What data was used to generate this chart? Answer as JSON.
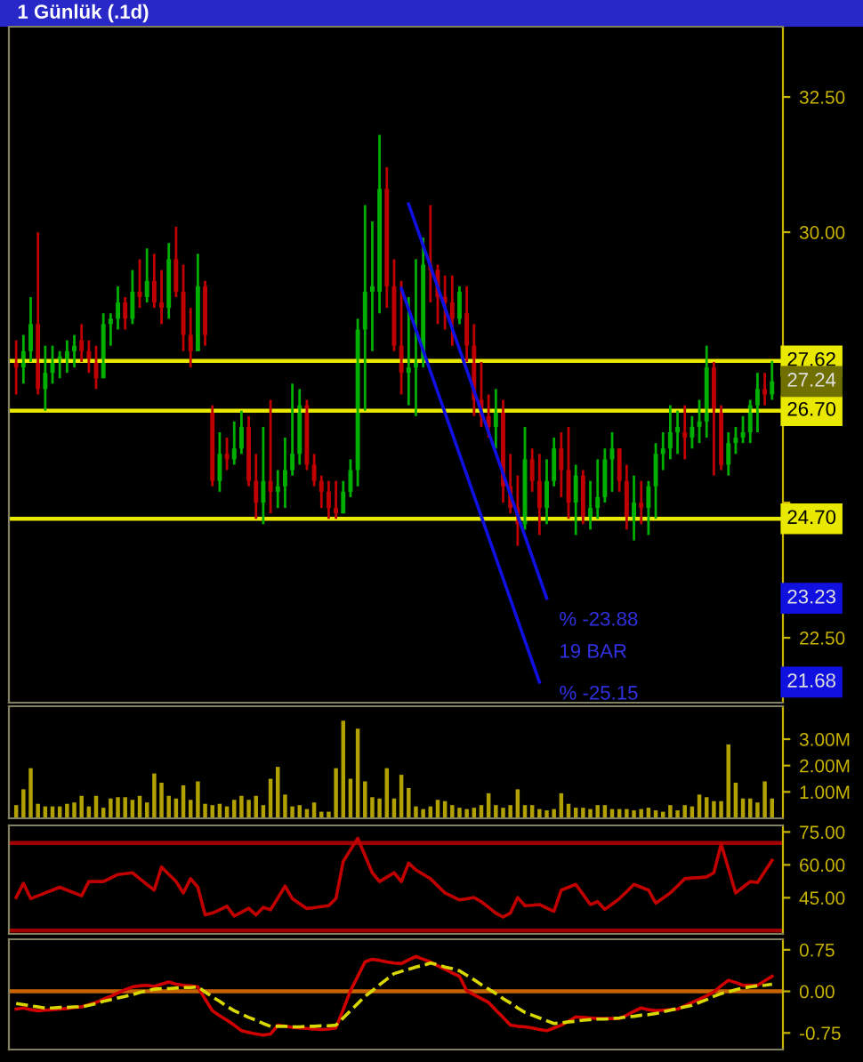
{
  "chart_data": [
    {
      "type": "candlestick",
      "title": "1 Günlük (.1d)",
      "tick_labels": "y",
      "grid": false,
      "legend": false,
      "categories": [
        null,
        null,
        null,
        null,
        null,
        null,
        null,
        null,
        null,
        null,
        null,
        null,
        null,
        null,
        null,
        null,
        null,
        null,
        null,
        null,
        null,
        null,
        null,
        null,
        null,
        null,
        null,
        null,
        null,
        null,
        null,
        null,
        null,
        null,
        null,
        null,
        null,
        null,
        null,
        null,
        null,
        null,
        null,
        null,
        null,
        null,
        null,
        null,
        null,
        null,
        null,
        null,
        null,
        null,
        null,
        null,
        null,
        null,
        null,
        null,
        null,
        null,
        null,
        null,
        null,
        null,
        null,
        null,
        null,
        null,
        null,
        null,
        null,
        null,
        null,
        null,
        null,
        null,
        null,
        null,
        null,
        null,
        null,
        null,
        null,
        null,
        null,
        null,
        null,
        null,
        null,
        null,
        null,
        null,
        null,
        null,
        null,
        null,
        null,
        null,
        null,
        null,
        null,
        null,
        null
      ],
      "ohlc": [
        [
          27.6,
          28.0,
          27.0,
          27.5
        ],
        [
          27.5,
          28.1,
          27.2,
          27.8
        ],
        [
          27.8,
          28.8,
          27.6,
          28.3
        ],
        [
          28.3,
          30.0,
          27.0,
          27.1
        ],
        [
          27.1,
          27.9,
          26.7,
          27.4
        ],
        [
          27.4,
          27.9,
          27.2,
          27.6
        ],
        [
          27.6,
          27.8,
          27.3,
          27.7
        ],
        [
          27.6,
          28.0,
          27.4,
          27.8
        ],
        [
          27.8,
          28.1,
          27.5,
          27.9
        ],
        [
          28.0,
          28.3,
          27.6,
          27.8
        ],
        [
          27.8,
          28.0,
          27.4,
          27.6
        ],
        [
          27.6,
          27.9,
          27.1,
          27.3
        ],
        [
          27.3,
          28.5,
          27.3,
          28.3
        ],
        [
          28.3,
          28.5,
          27.9,
          28.4
        ],
        [
          28.4,
          29.0,
          28.2,
          28.7
        ],
        [
          28.7,
          28.8,
          28.2,
          28.4
        ],
        [
          28.4,
          29.3,
          28.3,
          28.9
        ],
        [
          28.9,
          29.5,
          28.6,
          28.8
        ],
        [
          28.8,
          29.7,
          28.7,
          29.1
        ],
        [
          29.1,
          29.6,
          28.6,
          28.7
        ],
        [
          28.7,
          29.3,
          28.3,
          28.6
        ],
        [
          28.6,
          29.8,
          28.4,
          29.5
        ],
        [
          29.5,
          30.1,
          28.8,
          28.9
        ],
        [
          28.9,
          29.4,
          27.8,
          28.1
        ],
        [
          28.1,
          28.6,
          27.5,
          27.8
        ],
        [
          27.8,
          29.6,
          27.8,
          29.0
        ],
        [
          29.0,
          29.1,
          27.9,
          28.1
        ],
        [
          26.7,
          26.8,
          25.3,
          25.4
        ],
        [
          25.4,
          26.3,
          25.2,
          25.9
        ],
        [
          25.9,
          26.2,
          25.6,
          25.8
        ],
        [
          25.8,
          26.5,
          25.7,
          26.0
        ],
        [
          26.0,
          26.7,
          25.9,
          26.4
        ],
        [
          26.4,
          26.6,
          25.3,
          25.4
        ],
        [
          25.4,
          25.9,
          24.7,
          25.0
        ],
        [
          25.0,
          26.4,
          24.6,
          25.4
        ],
        [
          25.4,
          26.9,
          24.8,
          25.2
        ],
        [
          25.2,
          25.6,
          24.9,
          25.3
        ],
        [
          25.3,
          26.2,
          24.9,
          25.6
        ],
        [
          25.6,
          27.2,
          25.5,
          25.9
        ],
        [
          25.9,
          27.1,
          25.7,
          26.8
        ],
        [
          26.8,
          26.9,
          25.6,
          25.7
        ],
        [
          25.7,
          25.9,
          25.3,
          25.4
        ],
        [
          25.4,
          25.5,
          24.9,
          25.2
        ],
        [
          25.2,
          25.4,
          24.7,
          24.9
        ],
        [
          24.9,
          25.4,
          24.7,
          24.8
        ],
        [
          24.8,
          25.4,
          24.8,
          25.2
        ],
        [
          25.2,
          25.8,
          25.1,
          25.6
        ],
        [
          25.6,
          28.4,
          25.3,
          28.2
        ],
        [
          28.2,
          30.5,
          26.7,
          28.9
        ],
        [
          28.9,
          30.2,
          27.8,
          29.0
        ],
        [
          28.9,
          31.8,
          28.5,
          30.8
        ],
        [
          30.8,
          31.2,
          28.6,
          29.0
        ],
        [
          29.0,
          29.5,
          27.8,
          27.9
        ],
        [
          27.9,
          29.1,
          27.0,
          27.4
        ],
        [
          27.4,
          28.8,
          26.8,
          27.5
        ],
        [
          27.5,
          29.5,
          26.6,
          27.6
        ],
        [
          27.6,
          29.9,
          27.5,
          29.4
        ],
        [
          29.4,
          30.5,
          28.7,
          29.3
        ],
        [
          29.3,
          29.4,
          28.3,
          28.8
        ],
        [
          28.8,
          29.2,
          28.2,
          28.7
        ],
        [
          28.7,
          29.2,
          27.9,
          28.4
        ],
        [
          28.4,
          29.0,
          28.3,
          28.9
        ],
        [
          28.5,
          29.0,
          27.6,
          27.9
        ],
        [
          27.9,
          28.3,
          26.6,
          26.9
        ],
        [
          26.9,
          27.6,
          26.4,
          26.6
        ],
        [
          26.6,
          27.0,
          26.2,
          26.4
        ],
        [
          26.4,
          27.1,
          26.0,
          26.7
        ],
        [
          26.7,
          26.9,
          25.0,
          25.3
        ],
        [
          25.3,
          25.9,
          24.8,
          24.9
        ],
        [
          24.9,
          25.5,
          24.2,
          24.6
        ],
        [
          24.6,
          26.4,
          24.5,
          25.8
        ],
        [
          25.8,
          26.0,
          25.2,
          25.4
        ],
        [
          25.4,
          25.9,
          24.4,
          24.9
        ],
        [
          24.9,
          25.8,
          24.6,
          25.4
        ],
        [
          25.4,
          26.2,
          25.3,
          26.0
        ],
        [
          26.0,
          26.3,
          25.1,
          25.6
        ],
        [
          25.6,
          26.4,
          24.7,
          25.0
        ],
        [
          25.0,
          25.7,
          24.4,
          25.5
        ],
        [
          25.5,
          25.6,
          24.6,
          24.7
        ],
        [
          24.7,
          25.4,
          24.5,
          24.9
        ],
        [
          24.9,
          25.8,
          24.7,
          25.1
        ],
        [
          25.1,
          26.0,
          25.0,
          25.8
        ],
        [
          25.8,
          26.3,
          25.2,
          26.0
        ],
        [
          26.0,
          26.0,
          25.2,
          25.4
        ],
        [
          25.4,
          25.7,
          24.5,
          24.7
        ],
        [
          24.7,
          25.5,
          24.3,
          25.0
        ],
        [
          25.0,
          25.4,
          24.6,
          24.9
        ],
        [
          24.9,
          25.4,
          24.4,
          25.3
        ],
        [
          25.3,
          26.1,
          24.7,
          25.9
        ],
        [
          25.9,
          26.3,
          25.6,
          26.0
        ],
        [
          26.0,
          26.8,
          25.8,
          26.3
        ],
        [
          26.3,
          26.7,
          25.9,
          26.4
        ],
        [
          26.3,
          26.8,
          25.8,
          26.2
        ],
        [
          26.2,
          26.6,
          26.0,
          26.4
        ],
        [
          26.4,
          26.9,
          26.1,
          26.5
        ],
        [
          26.5,
          27.9,
          26.2,
          27.5
        ],
        [
          27.5,
          27.6,
          25.5,
          26.7
        ],
        [
          26.7,
          26.8,
          25.6,
          25.7
        ],
        [
          25.7,
          26.3,
          25.5,
          26.1
        ],
        [
          26.1,
          26.4,
          25.9,
          26.2
        ],
        [
          26.2,
          26.6,
          26.1,
          26.3
        ],
        [
          26.3,
          26.9,
          26.1,
          26.8
        ],
        [
          26.8,
          27.4,
          26.3,
          27.1
        ],
        [
          27.1,
          27.4,
          26.8,
          27.0
        ],
        [
          27.0,
          27.62,
          26.9,
          27.24
        ]
      ],
      "series": [
        {
          "type": "line",
          "color": "#1010e0",
          "values": [
            null,
            null,
            null,
            null,
            null,
            null,
            null,
            null,
            null,
            null,
            null,
            null,
            null,
            null,
            null,
            null,
            null,
            null,
            null,
            null,
            null,
            null,
            null,
            null,
            null,
            null,
            null,
            null,
            null,
            null,
            null,
            null,
            null,
            null,
            null,
            null,
            null,
            null,
            null,
            null,
            null,
            null,
            null,
            null,
            null,
            null,
            null,
            null,
            null,
            null,
            null,
            null,
            null,
            null,
            30.52,
            null,
            null,
            null,
            null,
            null,
            null,
            null,
            null,
            null,
            null,
            null,
            null,
            null,
            null,
            null,
            null,
            null,
            null,
            23.23,
            null,
            null,
            null,
            null,
            null,
            null,
            null,
            null,
            null,
            null,
            null,
            null,
            null,
            null,
            null,
            null,
            null,
            null,
            null,
            null,
            null,
            null,
            null,
            null,
            null,
            null,
            null,
            null,
            null,
            null,
            null
          ],
          "value_labels": [
            null,
            null,
            null,
            null,
            null,
            null,
            null,
            null,
            null,
            null,
            null,
            null,
            null,
            null,
            null,
            null,
            null,
            null,
            null,
            null,
            null,
            null,
            null,
            null,
            null,
            null,
            null,
            null,
            null,
            null,
            null,
            null,
            null,
            null,
            null,
            null,
            null,
            null,
            null,
            null,
            null,
            null,
            null,
            null,
            null,
            null,
            null,
            null,
            null,
            null,
            null,
            null,
            null,
            null,
            null,
            null,
            null,
            null,
            null,
            null,
            null,
            null,
            null,
            null,
            null,
            null,
            null,
            null,
            null,
            null,
            null,
            null,
            null,
            null,
            null,
            null,
            null,
            null,
            null,
            null,
            null,
            null,
            null,
            null,
            null,
            null,
            null,
            null,
            null,
            null,
            null,
            null,
            null,
            null,
            null,
            null,
            null,
            null,
            null,
            null,
            null,
            null,
            null,
            null,
            null
          ]
        },
        {
          "type": "line",
          "color": "#1010e0",
          "values": [
            null,
            null,
            null,
            null,
            null,
            null,
            null,
            null,
            null,
            null,
            null,
            null,
            null,
            null,
            null,
            null,
            null,
            null,
            null,
            null,
            null,
            null,
            null,
            null,
            null,
            null,
            null,
            null,
            null,
            null,
            null,
            null,
            null,
            null,
            null,
            null,
            null,
            null,
            null,
            null,
            null,
            null,
            null,
            null,
            null,
            null,
            null,
            null,
            null,
            null,
            null,
            null,
            null,
            28.96,
            null,
            null,
            null,
            null,
            null,
            null,
            null,
            null,
            null,
            null,
            null,
            null,
            null,
            null,
            null,
            null,
            null,
            null,
            21.68,
            null,
            null,
            null,
            null,
            null,
            null,
            null,
            null,
            null,
            null,
            null,
            null,
            null,
            null,
            null,
            null,
            null,
            null,
            null,
            null,
            null,
            null,
            null,
            null,
            null,
            null,
            null,
            null,
            null,
            null,
            null,
            null
          ],
          "value_labels": [
            null,
            null,
            null,
            null,
            null,
            null,
            null,
            null,
            null,
            null,
            null,
            null,
            null,
            null,
            null,
            null,
            null,
            null,
            null,
            null,
            null,
            null,
            null,
            null,
            null,
            null,
            null,
            null,
            null,
            null,
            null,
            null,
            null,
            null,
            null,
            null,
            null,
            null,
            null,
            null,
            null,
            null,
            null,
            null,
            null,
            null,
            null,
            null,
            null,
            null,
            null,
            null,
            null,
            null,
            null,
            null,
            null,
            null,
            null,
            null,
            null,
            null,
            null,
            null,
            null,
            null,
            null,
            null,
            null,
            null,
            null,
            null,
            null,
            null,
            null,
            null,
            null,
            null,
            null,
            null,
            null,
            null,
            null,
            null,
            null,
            null,
            null,
            null,
            null,
            null,
            null,
            null,
            null,
            null,
            null,
            null,
            null,
            null,
            null,
            null,
            null,
            null,
            null,
            null,
            null
          ]
        }
      ],
      "ylim": [
        21.3,
        33.8
      ],
      "yticks": [
        {
          "value": 22.5,
          "label": "22.50"
        },
        {
          "value": 25,
          "label": null
        },
        {
          "value": 30,
          "label": "30.00"
        },
        {
          "value": 32.5,
          "label": "32.50"
        }
      ],
      "ref_lines": [
        {
          "axis": "y",
          "value": 27.62,
          "label": "27.62",
          "color": "#e8e800"
        },
        {
          "axis": "y",
          "value": 26.7,
          "label": "26.70",
          "color": "#e8e800"
        },
        {
          "axis": "y",
          "value": 24.7,
          "label": "24.70",
          "color": "#e8e800"
        }
      ],
      "annotations": [
        {
          "text": "27.24",
          "y": 27.24
        },
        {
          "text": "23.23",
          "y": 23.23
        },
        {
          "text": "21.68",
          "y": 21.68
        },
        "% -23.88",
        "19 BAR",
        "% -25.15"
      ]
    },
    {
      "type": "bar",
      "tick_labels": "y",
      "grid": false,
      "legend": false,
      "color": "#b0a000",
      "categories": [
        null,
        null,
        null,
        null,
        null,
        null,
        null,
        null,
        null,
        null,
        null,
        null,
        null,
        null,
        null,
        null,
        null,
        null,
        null,
        null,
        null,
        null,
        null,
        null,
        null,
        null,
        null,
        null,
        null,
        null,
        null,
        null,
        null,
        null,
        null,
        null,
        null,
        null,
        null,
        null,
        null,
        null,
        null,
        null,
        null,
        null,
        null,
        null,
        null,
        null,
        null,
        null,
        null,
        null,
        null,
        null,
        null,
        null,
        null,
        null,
        null,
        null,
        null,
        null,
        null,
        null,
        null,
        null,
        null,
        null,
        null,
        null,
        null,
        null,
        null,
        null,
        null,
        null,
        null,
        null,
        null,
        null,
        null,
        null,
        null,
        null,
        null,
        null,
        null,
        null,
        null,
        null,
        null,
        null,
        null,
        null,
        null,
        null,
        null,
        null,
        null,
        null,
        null,
        null,
        null
      ],
      "values": [
        0.5,
        1.1,
        1.9,
        0.55,
        0.45,
        0.45,
        0.45,
        0.55,
        0.6,
        0.85,
        0.45,
        0.85,
        0.4,
        0.75,
        0.8,
        0.8,
        0.7,
        0.85,
        0.6,
        1.7,
        1.35,
        0.85,
        0.75,
        1.25,
        0.7,
        1.4,
        0.55,
        0.5,
        0.55,
        0.45,
        0.7,
        0.85,
        0.7,
        0.85,
        0.5,
        1.5,
        1.95,
        0.9,
        0.45,
        0.5,
        0.35,
        0.6,
        0.25,
        0.25,
        1.9,
        3.7,
        1.5,
        3.4,
        1.4,
        0.8,
        0.75,
        1.9,
        0.75,
        1.65,
        1.15,
        0.45,
        0.35,
        0.45,
        0.7,
        0.65,
        0.5,
        0.4,
        0.35,
        0.4,
        0.5,
        0.95,
        0.5,
        0.4,
        0.5,
        1.1,
        0.5,
        0.5,
        0.35,
        0.3,
        0.35,
        0.95,
        0.55,
        0.4,
        0.4,
        0.35,
        0.5,
        0.5,
        0.35,
        0.35,
        0.35,
        0.3,
        0.35,
        0.4,
        0.3,
        0.25,
        0.5,
        0.3,
        0.5,
        0.45,
        0.9,
        0.8,
        0.65,
        0.65,
        2.8,
        1.35,
        0.75,
        0.75,
        0.6,
        1.4,
        0.75
      ],
      "ylim": [
        0,
        4.25
      ],
      "yticks": [
        {
          "value": 1,
          "label": "1.00M"
        },
        {
          "value": 2,
          "label": "2.00M"
        },
        {
          "value": 3,
          "label": "3.00M"
        }
      ]
    },
    {
      "type": "line",
      "tick_labels": "y",
      "grid": false,
      "legend": false,
      "categories": [
        null,
        null,
        null,
        null,
        null,
        null,
        null,
        null,
        null,
        null,
        null,
        null,
        null,
        null,
        null,
        null,
        null,
        null,
        null,
        null,
        null,
        null,
        null,
        null,
        null,
        null,
        null,
        null,
        null,
        null,
        null,
        null,
        null,
        null,
        null,
        null,
        null,
        null,
        null,
        null,
        null,
        null,
        null,
        null,
        null,
        null,
        null,
        null,
        null,
        null,
        null,
        null,
        null,
        null,
        null,
        null,
        null,
        null,
        null,
        null,
        null,
        null,
        null,
        null,
        null,
        null,
        null,
        null,
        null,
        null,
        null,
        null,
        null,
        null,
        null,
        null,
        null,
        null,
        null,
        null,
        null,
        null,
        null,
        null,
        null,
        null,
        null,
        null,
        null,
        null,
        null,
        null,
        null,
        null,
        null,
        null,
        null,
        null,
        null,
        null,
        null,
        null,
        null,
        null,
        null
      ],
      "series": [
        {
          "color": "#c00000",
          "line_style": "solid",
          "values": [
            45.1,
            51.6,
            44.6,
            45.9,
            47.2,
            48.5,
            49.8,
            48.5,
            47.2,
            45.9,
            52.4,
            52.4,
            52.4,
            54.0,
            55.6,
            56.0,
            56.4,
            53.7,
            51.1,
            48.5,
            59.0,
            55.7,
            52.4,
            47.2,
            53.7,
            49.8,
            37.2,
            38.0,
            39.5,
            41.1,
            36.7,
            38.4,
            40.2,
            37.2,
            40.6,
            39.5,
            44.9,
            50.3,
            44.6,
            42.3,
            40.1,
            40.5,
            41.0,
            41.4,
            44.6,
            61.6,
            66.9,
            72.1,
            64.2,
            56.4,
            52.4,
            54.4,
            56.4,
            52.4,
            60.8,
            57.7,
            55.7,
            53.7,
            50.4,
            47.2,
            45.6,
            44.0,
            44.5,
            45.1,
            43.2,
            40.6,
            38.0,
            36.2,
            38.0,
            45.1,
            41.4,
            41.6,
            41.9,
            40.3,
            38.8,
            48.5,
            49.8,
            51.1,
            46.5,
            41.9,
            43.2,
            39.7,
            42.1,
            44.6,
            47.8,
            51.1,
            49.8,
            48.5,
            42.5,
            44.8,
            47.2,
            50.4,
            53.7,
            54.0,
            54.2,
            54.5,
            56.4,
            69.5,
            58.3,
            47.2,
            49.8,
            52.4,
            51.9,
            57.0,
            62.1
          ]
        }
      ],
      "ylim": [
        28.5,
        78
      ],
      "yticks": [
        {
          "value": 45,
          "label": "45.00"
        },
        {
          "value": 60,
          "label": "60.00"
        },
        {
          "value": 75,
          "label": "75.00"
        }
      ],
      "ref_lines": [
        {
          "axis": "y",
          "value": 70,
          "color": "#a00000"
        },
        {
          "axis": "y",
          "value": 30,
          "color": "#a00000"
        }
      ]
    },
    {
      "type": "line",
      "tick_labels": "y",
      "grid": false,
      "legend": false,
      "categories": [
        null,
        null,
        null,
        null,
        null,
        null,
        null,
        null,
        null,
        null,
        null,
        null,
        null,
        null,
        null,
        null,
        null,
        null,
        null,
        null,
        null,
        null,
        null,
        null,
        null,
        null,
        null,
        null,
        null,
        null,
        null,
        null,
        null,
        null,
        null,
        null,
        null,
        null,
        null,
        null,
        null,
        null,
        null,
        null,
        null,
        null,
        null,
        null,
        null,
        null,
        null,
        null,
        null,
        null,
        null,
        null,
        null,
        null,
        null,
        null,
        null,
        null,
        null,
        null,
        null,
        null,
        null,
        null,
        null,
        null,
        null,
        null,
        null,
        null,
        null,
        null,
        null,
        null,
        null,
        null,
        null,
        null,
        null,
        null,
        null,
        null,
        null,
        null,
        null,
        null,
        null,
        null,
        null,
        null,
        null,
        null,
        null,
        null,
        null,
        null,
        null,
        null,
        null,
        null,
        null
      ],
      "series": [
        {
          "color": "#d00000",
          "line_style": "solid",
          "values": [
            -0.32,
            -0.3,
            -0.33,
            -0.35,
            -0.34,
            -0.33,
            -0.32,
            -0.31,
            -0.29,
            -0.28,
            -0.24,
            -0.2,
            -0.14,
            -0.09,
            -0.03,
            0.03,
            0.08,
            0.1,
            0.11,
            0.09,
            0.13,
            0.17,
            0.13,
            0.11,
            0.1,
            0.08,
            -0.14,
            -0.35,
            -0.44,
            -0.52,
            -0.61,
            -0.71,
            -0.74,
            -0.77,
            -0.79,
            -0.77,
            -0.61,
            -0.63,
            -0.65,
            -0.66,
            -0.67,
            -0.68,
            -0.69,
            -0.68,
            -0.66,
            -0.33,
            0.01,
            0.27,
            0.53,
            0.58,
            0.56,
            0.53,
            0.51,
            0.5,
            0.57,
            0.63,
            0.58,
            0.53,
            0.46,
            0.4,
            0.33,
            0.27,
            0.01,
            -0.06,
            -0.13,
            -0.2,
            -0.34,
            -0.47,
            -0.61,
            -0.63,
            -0.64,
            -0.66,
            -0.69,
            -0.71,
            -0.66,
            -0.61,
            -0.54,
            -0.46,
            -0.47,
            -0.48,
            -0.49,
            -0.49,
            -0.49,
            -0.49,
            -0.43,
            -0.36,
            -0.3,
            -0.33,
            -0.35,
            -0.34,
            -0.33,
            -0.32,
            -0.26,
            -0.2,
            -0.14,
            -0.08,
            -0.01,
            0.1,
            0.2,
            0.16,
            0.11,
            0.11,
            0.11,
            0.19,
            0.27
          ]
        },
        {
          "color": "#d8d800",
          "line_style": "dashed",
          "values": [
            -0.22,
            -0.24,
            -0.26,
            -0.28,
            -0.3,
            -0.3,
            -0.29,
            -0.29,
            -0.28,
            -0.28,
            -0.25,
            -0.22,
            -0.18,
            -0.15,
            -0.12,
            -0.09,
            -0.06,
            -0.02,
            0.01,
            0.04,
            0.05,
            0.05,
            0.06,
            0.07,
            0.07,
            0.08,
            -0.01,
            -0.1,
            -0.18,
            -0.27,
            -0.35,
            -0.41,
            -0.47,
            -0.52,
            -0.58,
            -0.63,
            -0.63,
            -0.63,
            -0.64,
            -0.64,
            -0.63,
            -0.63,
            -0.62,
            -0.62,
            -0.61,
            -0.48,
            -0.35,
            -0.22,
            -0.09,
            0.01,
            0.12,
            0.22,
            0.32,
            0.36,
            0.4,
            0.44,
            0.47,
            0.51,
            0.48,
            0.44,
            0.41,
            0.37,
            0.29,
            0.21,
            0.12,
            0.04,
            -0.04,
            -0.13,
            -0.21,
            -0.3,
            -0.38,
            -0.43,
            -0.48,
            -0.53,
            -0.58,
            -0.57,
            -0.55,
            -0.54,
            -0.52,
            -0.51,
            -0.5,
            -0.5,
            -0.49,
            -0.48,
            -0.46,
            -0.45,
            -0.43,
            -0.42,
            -0.4,
            -0.37,
            -0.34,
            -0.31,
            -0.28,
            -0.25,
            -0.2,
            -0.15,
            -0.09,
            -0.04,
            -0.01,
            0.03,
            0.06,
            0.08,
            0.1,
            0.11,
            0.13
          ]
        }
      ],
      "ylim": [
        -1.05,
        0.94
      ],
      "yticks": [
        {
          "value": -0.75,
          "label": "-0.75"
        },
        {
          "value": 0,
          "label": "0.00"
        },
        {
          "value": 0.75,
          "label": "0.75"
        }
      ],
      "ref_lines": [
        {
          "axis": "y",
          "value": 0,
          "color": "#c86400"
        }
      ]
    }
  ]
}
